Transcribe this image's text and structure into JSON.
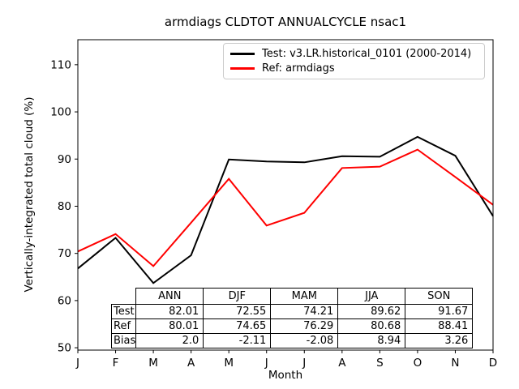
{
  "chart_data": {
    "type": "line",
    "title": "armdiags CLDTOT ANNUALCYCLE nsac1",
    "xlabel": "Month",
    "ylabel": "Vertically-integrated total cloud (%)",
    "categories": [
      "J",
      "F",
      "M",
      "A",
      "M",
      "J",
      "J",
      "A",
      "S",
      "O",
      "N",
      "D"
    ],
    "yticks": [
      50,
      60,
      70,
      80,
      90,
      100,
      110
    ],
    "ylim": [
      49.5,
      115.3
    ],
    "grid": false,
    "legend_position": "upper center",
    "series": [
      {
        "name": "Test: v3.LR.historical_0101 (2000-2014)",
        "color": "#000000",
        "values": [
          66.8,
          73.3,
          63.7,
          69.6,
          89.9,
          89.5,
          89.3,
          90.6,
          90.5,
          94.7,
          90.7,
          77.9
        ]
      },
      {
        "name": "Ref: armdiags",
        "color": "#ff0000",
        "values": [
          70.4,
          74.1,
          67.3,
          76.5,
          85.8,
          75.9,
          78.6,
          88.1,
          88.4,
          92.0,
          86.2,
          80.3
        ]
      }
    ]
  },
  "table": {
    "columns": [
      "ANN",
      "DJF",
      "MAM",
      "JJA",
      "SON"
    ],
    "rows": [
      {
        "label": "Test",
        "values": [
          "82.01",
          "72.55",
          "74.21",
          "89.62",
          "91.67"
        ]
      },
      {
        "label": "Ref",
        "values": [
          "80.01",
          "74.65",
          "76.29",
          "80.68",
          "88.41"
        ]
      },
      {
        "label": "Bias",
        "values": [
          "2.0",
          "-2.11",
          "-2.08",
          "8.94",
          "3.26"
        ]
      }
    ]
  }
}
